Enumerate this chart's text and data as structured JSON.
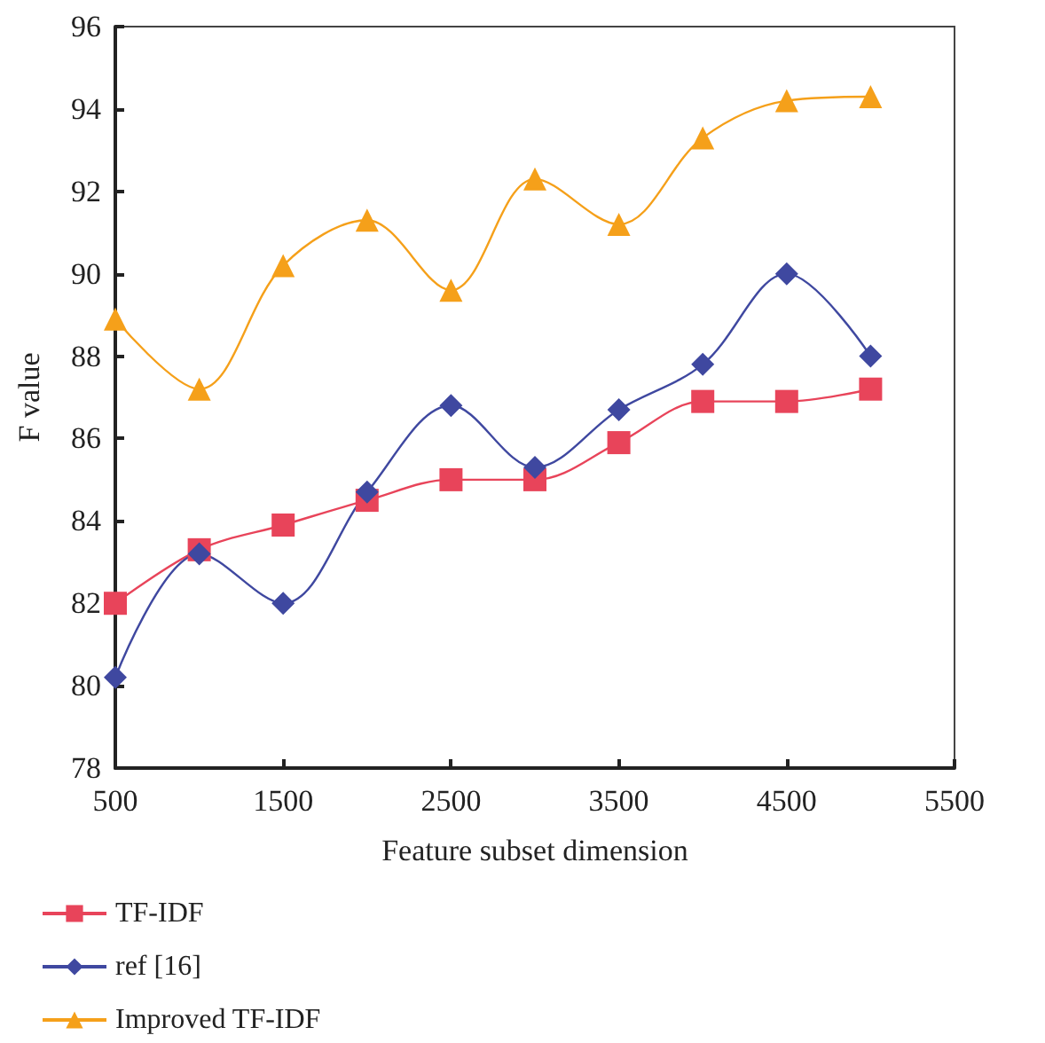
{
  "chart_data": {
    "type": "line",
    "xlabel": "Feature subset dimension",
    "ylabel": "F value",
    "x": [
      500,
      1000,
      1500,
      2000,
      2500,
      3000,
      3500,
      4000,
      4500,
      5000
    ],
    "series": [
      {
        "name": "TF-IDF",
        "color": "#e8445a",
        "marker": "square",
        "values": [
          82.0,
          83.3,
          83.9,
          84.5,
          85.0,
          85.0,
          85.9,
          86.9,
          86.9,
          87.2
        ]
      },
      {
        "name": "ref [16]",
        "color": "#3f48a0",
        "marker": "diamond",
        "values": [
          80.2,
          83.2,
          82.0,
          84.7,
          86.8,
          85.3,
          86.7,
          87.8,
          90.0,
          88.0
        ]
      },
      {
        "name": "Improved TF-IDF",
        "color": "#f5a01a",
        "marker": "triangle",
        "values": [
          88.9,
          87.2,
          90.2,
          91.3,
          89.6,
          92.3,
          91.2,
          93.3,
          94.2,
          94.3
        ]
      }
    ],
    "xlim": [
      500,
      5500
    ],
    "xticks": [
      500,
      1500,
      2500,
      3500,
      4500,
      5500
    ],
    "ylim": [
      78,
      96
    ],
    "yticks": [
      78,
      80,
      82,
      84,
      86,
      88,
      90,
      92,
      94,
      96
    ],
    "grid": false,
    "legend": "bottom left",
    "line_style": "solid"
  }
}
